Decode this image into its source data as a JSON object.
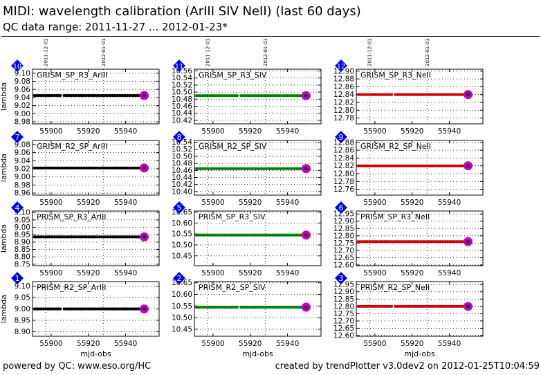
{
  "title": "MIDI: wavelength calibration (ArIII SIV NeII) (last 60 days)",
  "subtitle": "QC data range: 2011-11-27 ... 2012-01-23*",
  "footer": {
    "left": "powered by QC: www.eso.org/HC",
    "right": "created by trendPlotter v3.0dev2 on 2012-01-25T10:04:59"
  },
  "colors": {
    "black": "#000000",
    "green": "#008000",
    "red": "#cc0000",
    "highlight": "#c000c0",
    "badge": "#0000ee"
  },
  "chart_data": [
    {
      "type": "scatter",
      "badge": "10",
      "label": "GRISM_SP_R3_ArIII",
      "color": "black",
      "ylabel": "lambda",
      "xlabel": "",
      "xlim": [
        55890,
        55958
      ],
      "xticks": [
        55900,
        55920,
        55940
      ],
      "ylim": [
        8.975,
        9.11
      ],
      "yticks": [
        8.98,
        9.0,
        9.02,
        9.04,
        9.06,
        9.08,
        9.1
      ],
      "yticklabels": [
        "8.98",
        "9.00",
        "9.02",
        "9.04",
        "9.06",
        "9.08",
        "9.10"
      ],
      "date_markers": [
        {
          "x": 55897,
          "label": "2011-12-01"
        },
        {
          "x": 55928,
          "label": "2012-01-01"
        }
      ],
      "x_range": [
        55891,
        55950
      ],
      "gaps": [
        55906
      ],
      "y": 9.045,
      "last": {
        "x": 55950,
        "y": 9.045
      }
    },
    {
      "type": "scatter",
      "badge": "11",
      "label": "GRISM_SP_R3_SIV",
      "color": "green",
      "ylabel": "",
      "xlabel": "",
      "xlim": [
        55890,
        55958
      ],
      "xticks": [
        55900,
        55920,
        55940
      ],
      "ylim": [
        10.41,
        10.565
      ],
      "yticks": [
        10.42,
        10.44,
        10.46,
        10.48,
        10.5,
        10.52,
        10.54,
        10.56
      ],
      "yticklabels": [
        "10.42",
        "10.44",
        "10.46",
        "10.48",
        "10.50",
        "10.52",
        "10.54",
        "10.56"
      ],
      "date_markers": [
        {
          "x": 55897,
          "label": "2011-12-01"
        },
        {
          "x": 55928,
          "label": "2012-01-01"
        }
      ],
      "x_range": [
        55891,
        55950
      ],
      "gaps": [
        55914
      ],
      "y": 10.49,
      "last": {
        "x": 55950,
        "y": 10.49
      }
    },
    {
      "type": "scatter",
      "badge": "12",
      "label": "GRISM_SP_R3_NeII",
      "color": "red",
      "ylabel": "",
      "xlabel": "",
      "xlim": [
        55890,
        55958
      ],
      "xticks": [
        55900,
        55920,
        55940
      ],
      "ylim": [
        12.765,
        12.905
      ],
      "yticks": [
        12.78,
        12.8,
        12.82,
        12.84,
        12.86,
        12.88,
        12.9
      ],
      "yticklabels": [
        "12.78",
        "12.80",
        "12.82",
        "12.84",
        "12.86",
        "12.88",
        "12.90"
      ],
      "date_markers": [
        {
          "x": 55897,
          "label": "2011-12-01"
        },
        {
          "x": 55928,
          "label": "2012-01-01"
        }
      ],
      "x_range": [
        55891,
        55950
      ],
      "gaps": [
        55910
      ],
      "y": 12.84,
      "last": {
        "x": 55950,
        "y": 12.84
      }
    },
    {
      "type": "scatter",
      "badge": "7",
      "label": "GRISM_R2_SP_ArIII",
      "color": "black",
      "ylabel": "lambda",
      "xlabel": "",
      "xlim": [
        55890,
        55958
      ],
      "xticks": [
        55900,
        55920,
        55940
      ],
      "ylim": [
        8.955,
        9.09
      ],
      "yticks": [
        8.96,
        8.98,
        9.0,
        9.02,
        9.04,
        9.06,
        9.08
      ],
      "yticklabels": [
        "8.96",
        "8.98",
        "9.00",
        "9.02",
        "9.04",
        "9.06",
        "9.08"
      ],
      "date_markers": [
        {
          "x": 55897,
          "label": ""
        },
        {
          "x": 55928,
          "label": ""
        }
      ],
      "x_range": [
        55891,
        55950
      ],
      "gaps": [],
      "y": 9.022,
      "last": {
        "x": 55950,
        "y": 9.022
      }
    },
    {
      "type": "scatter",
      "badge": "8",
      "label": "GRISM_R2_SP_SIV",
      "color": "green",
      "ylabel": "",
      "xlabel": "",
      "xlim": [
        55890,
        55958
      ],
      "xticks": [
        55900,
        55920,
        55940
      ],
      "ylim": [
        10.39,
        10.545
      ],
      "yticks": [
        10.4,
        10.42,
        10.44,
        10.46,
        10.48,
        10.5,
        10.52,
        10.54
      ],
      "yticklabels": [
        "10.40",
        "10.42",
        "10.44",
        "10.46",
        "10.48",
        "10.50",
        "10.52",
        "10.54"
      ],
      "date_markers": [
        {
          "x": 55897,
          "label": ""
        },
        {
          "x": 55928,
          "label": ""
        }
      ],
      "x_range": [
        55891,
        55950
      ],
      "gaps": [],
      "y": 10.465,
      "last": {
        "x": 55950,
        "y": 10.465
      }
    },
    {
      "type": "scatter",
      "badge": "9",
      "label": "GRISM_R2_SP_NeII",
      "color": "red",
      "ylabel": "",
      "xlabel": "",
      "xlim": [
        55890,
        55958
      ],
      "xticks": [
        55900,
        55920,
        55940
      ],
      "ylim": [
        12.745,
        12.885
      ],
      "yticks": [
        12.76,
        12.78,
        12.8,
        12.82,
        12.84,
        12.86,
        12.88
      ],
      "yticklabels": [
        "12.76",
        "12.78",
        "12.80",
        "12.82",
        "12.84",
        "12.86",
        "12.88"
      ],
      "date_markers": [
        {
          "x": 55897,
          "label": ""
        },
        {
          "x": 55928,
          "label": ""
        }
      ],
      "x_range": [
        55891,
        55950
      ],
      "gaps": [],
      "y": 12.82,
      "last": {
        "x": 55950,
        "y": 12.82
      }
    },
    {
      "type": "scatter",
      "badge": "4",
      "label": "PRISM_SP_R3_ArIII",
      "color": "black",
      "ylabel": "lambda",
      "xlabel": "",
      "xlim": [
        55890,
        55958
      ],
      "xticks": [
        55900,
        55920,
        55940
      ],
      "ylim": [
        8.74,
        9.11
      ],
      "yticks": [
        8.75,
        8.8,
        8.85,
        8.9,
        8.95,
        9.0,
        9.05,
        9.1
      ],
      "yticklabels": [
        "8.75",
        "8.80",
        "8.85",
        "8.90",
        "8.95",
        "9.00",
        "9.05",
        "9.10"
      ],
      "date_markers": [
        {
          "x": 55897,
          "label": ""
        },
        {
          "x": 55928,
          "label": ""
        }
      ],
      "x_range": [
        55891,
        55950
      ],
      "gaps": [],
      "y": 8.935,
      "last": {
        "x": 55950,
        "y": 8.935
      }
    },
    {
      "type": "scatter",
      "badge": "5",
      "label": "PRISM_SP_R3_SIV",
      "color": "green",
      "ylabel": "",
      "xlabel": "",
      "xlim": [
        55890,
        55958
      ],
      "xticks": [
        55900,
        55920,
        55940
      ],
      "ylim": [
        10.405,
        10.655
      ],
      "yticks": [
        10.45,
        10.5,
        10.55,
        10.6,
        10.65
      ],
      "yticklabels": [
        "10.45",
        "10.50",
        "10.55",
        "10.60",
        "10.65"
      ],
      "date_markers": [
        {
          "x": 55897,
          "label": ""
        },
        {
          "x": 55928,
          "label": ""
        }
      ],
      "x_range": [
        55891,
        55950
      ],
      "gaps": [],
      "y": 10.545,
      "last": {
        "x": 55950,
        "y": 10.545
      }
    },
    {
      "type": "scatter",
      "badge": "6",
      "label": "PRISM_SP_R3_NeII",
      "color": "red",
      "ylabel": "",
      "xlabel": "",
      "xlim": [
        55890,
        55958
      ],
      "xticks": [
        55900,
        55920,
        55940
      ],
      "ylim": [
        12.595,
        12.97
      ],
      "yticks": [
        12.6,
        12.65,
        12.7,
        12.75,
        12.8,
        12.85,
        12.9,
        12.95
      ],
      "yticklabels": [
        "12.60",
        "12.65",
        "12.70",
        "12.75",
        "12.80",
        "12.85",
        "12.90",
        "12.95"
      ],
      "date_markers": [
        {
          "x": 55897,
          "label": ""
        },
        {
          "x": 55928,
          "label": ""
        }
      ],
      "x_range": [
        55891,
        55950
      ],
      "gaps": [],
      "y": 12.76,
      "last": {
        "x": 55950,
        "y": 12.76
      }
    },
    {
      "type": "scatter",
      "badge": "1",
      "label": "PRISM_R2_SP_ArIII",
      "color": "black",
      "ylabel": "lambda",
      "xlabel": "",
      "xlim": [
        55890,
        55958
      ],
      "xticks": [
        55900,
        55920,
        55940
      ],
      "ylim": [
        8.88,
        9.12
      ],
      "yticks": [
        8.9,
        8.95,
        9.0,
        9.05,
        9.1
      ],
      "yticklabels": [
        "8.90",
        "8.95",
        "9.00",
        "9.05",
        "9.10"
      ],
      "date_markers": [
        {
          "x": 55897,
          "label": ""
        },
        {
          "x": 55928,
          "label": ""
        }
      ],
      "x_range": [
        55891,
        55950
      ],
      "gaps": [
        55906
      ],
      "y": 9.0,
      "last": {
        "x": 55950,
        "y": 9.0
      }
    },
    {
      "type": "scatter",
      "badge": "2",
      "label": "PRISM_R2_SP_SIV",
      "color": "green",
      "ylabel": "",
      "xlabel": "mjd-obs",
      "xlim": [
        55890,
        55958
      ],
      "xticks": [
        55900,
        55920,
        55940
      ],
      "ylim": [
        10.42,
        10.655
      ],
      "yticks": [
        10.45,
        10.5,
        10.55,
        10.6,
        10.65
      ],
      "yticklabels": [
        "10.45",
        "10.50",
        "10.55",
        "10.60",
        "10.65"
      ],
      "date_markers": [
        {
          "x": 55897,
          "label": ""
        },
        {
          "x": 55928,
          "label": ""
        }
      ],
      "x_range": [
        55891,
        55950
      ],
      "gaps": [
        55914
      ],
      "y": 10.545,
      "last": {
        "x": 55950,
        "y": 10.545
      }
    },
    {
      "type": "scatter",
      "badge": "3",
      "label": "PRISM_R2_SP_NeII",
      "color": "red",
      "ylabel": "",
      "xlabel": "mjd-obs",
      "xlim": [
        55890,
        55958
      ],
      "xticks": [
        55900,
        55920,
        55940
      ],
      "ylim": [
        12.595,
        12.97
      ],
      "yticks": [
        12.6,
        12.65,
        12.7,
        12.75,
        12.8,
        12.85,
        12.9,
        12.95
      ],
      "yticklabels": [
        "12.60",
        "12.65",
        "12.70",
        "12.75",
        "12.80",
        "12.85",
        "12.90",
        "12.95"
      ],
      "date_markers": [
        {
          "x": 55897,
          "label": ""
        },
        {
          "x": 55928,
          "label": ""
        }
      ],
      "x_range": [
        55891,
        55950
      ],
      "gaps": [
        55910
      ],
      "y": 12.8,
      "last": {
        "x": 55950,
        "y": 12.8
      }
    }
  ]
}
